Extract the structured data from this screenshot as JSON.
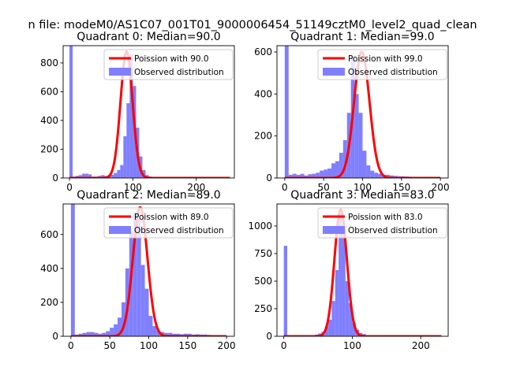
{
  "figure": {
    "suptitle": "n file: modeM0/AS1C07_001T01_9000006454_51149cztM0_level2_quad_clean"
  },
  "style": {
    "hist_color": "#7f7fff",
    "fit_color": "#ff0000",
    "spine_color": "#000000"
  },
  "chart_data": [
    {
      "type": "histogram",
      "title": "Quadrant 0: Median=90.0",
      "xlim": [
        -10,
        260
      ],
      "ylim": [
        0,
        920
      ],
      "xticks": [
        0,
        100,
        200
      ],
      "yticks": [
        0,
        200,
        400,
        600,
        800
      ],
      "legend": {
        "placement": "top-right",
        "entries": [
          "Poission with 90.0",
          "Observed distribution"
        ]
      },
      "fit": {
        "label": "Poission with 90.0",
        "mu": 90,
        "peak": 880,
        "sigma": 9.5,
        "x_range": [
          0,
          253
        ]
      },
      "bins": {
        "start": 0,
        "width": 5
      },
      "counts": [
        920,
        10,
        15,
        20,
        30,
        30,
        25,
        10,
        10,
        15,
        20,
        15,
        18,
        22,
        35,
        55,
        90,
        290,
        520,
        860,
        640,
        350,
        150,
        55,
        20,
        10,
        5,
        5,
        3,
        2,
        2,
        2,
        2,
        2,
        2,
        2,
        2,
        2,
        2,
        2,
        2,
        2,
        2,
        2,
        2,
        2,
        2,
        2,
        2,
        2,
        2
      ]
    },
    {
      "type": "histogram",
      "title": "Quadrant 1: Median=99.0",
      "xlim": [
        -10,
        210
      ],
      "ylim": [
        0,
        630
      ],
      "xticks": [
        0,
        50,
        100,
        150,
        200
      ],
      "yticks": [
        0,
        200,
        400,
        600
      ],
      "legend": {
        "placement": "top-right",
        "entries": [
          "Poission with 99.0",
          "Observed distribution"
        ]
      },
      "fit": {
        "label": "Poission with 99.0",
        "mu": 99,
        "peak": 600,
        "sigma": 9.9,
        "x_range": [
          0,
          200
        ]
      },
      "bins": {
        "start": 0,
        "width": 5
      },
      "counts": [
        630,
        15,
        20,
        15,
        20,
        12,
        18,
        20,
        25,
        35,
        40,
        45,
        70,
        80,
        120,
        180,
        310,
        580,
        400,
        310,
        130,
        60,
        35,
        25,
        20,
        15,
        15,
        12,
        10,
        8,
        8,
        7,
        6,
        5,
        5,
        5,
        4,
        4,
        3,
        3
      ]
    },
    {
      "type": "histogram",
      "title": "Quadrant 2: Median=89.0",
      "xlim": [
        -10,
        210
      ],
      "ylim": [
        0,
        780
      ],
      "xticks": [
        0,
        50,
        100,
        150,
        200
      ],
      "yticks": [
        0,
        200,
        400,
        600
      ],
      "legend": {
        "placement": "top-right",
        "entries": [
          "Poission with 89.0",
          "Observed distribution"
        ]
      },
      "fit": {
        "label": "Poission with 89.0",
        "mu": 89,
        "peak": 760,
        "sigma": 9.4,
        "x_range": [
          0,
          200
        ]
      },
      "bins": {
        "start": 0,
        "width": 5
      },
      "counts": [
        780,
        10,
        15,
        20,
        25,
        25,
        20,
        15,
        20,
        30,
        50,
        70,
        110,
        200,
        400,
        620,
        730,
        690,
        420,
        280,
        120,
        60,
        35,
        25,
        20,
        20,
        15,
        15,
        12,
        15,
        15,
        10,
        12,
        10,
        10,
        8,
        6,
        5,
        4,
        3
      ]
    },
    {
      "type": "histogram",
      "title": "Quadrant 3: Median=83.0",
      "xlim": [
        -10,
        240
      ],
      "ylim": [
        0,
        1200
      ],
      "xticks": [
        0,
        100,
        200
      ],
      "yticks": [
        0,
        250,
        500,
        750,
        1000
      ],
      "legend": {
        "placement": "top-right",
        "entries": [
          "Poission with 83.0",
          "Observed distribution"
        ]
      },
      "fit": {
        "label": "Poission with 83.0",
        "mu": 83,
        "peak": 1150,
        "sigma": 9.1,
        "x_range": [
          0,
          230
        ]
      },
      "bins": {
        "start": 0,
        "width": 5
      },
      "counts": [
        820,
        5,
        5,
        5,
        5,
        5,
        5,
        8,
        10,
        15,
        25,
        40,
        90,
        150,
        320,
        600,
        1150,
        950,
        500,
        300,
        120,
        60,
        30,
        20,
        10,
        8,
        5,
        4,
        3,
        3,
        2,
        2,
        2,
        2,
        2,
        2,
        2,
        2,
        2,
        2,
        2,
        2,
        2,
        2,
        2,
        2
      ]
    }
  ]
}
